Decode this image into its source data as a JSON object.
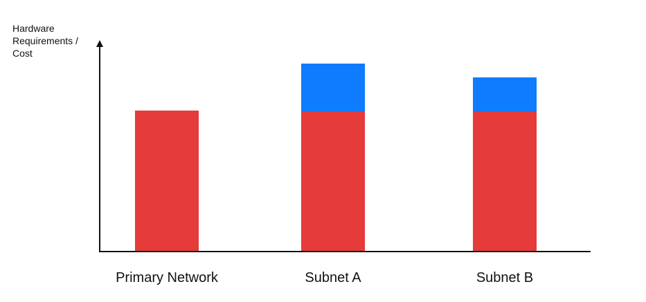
{
  "chart_data": {
    "type": "stacked-bar",
    "y_label": "Hardware Requirements / Cost",
    "categories": [
      "Primary Network",
      "Subnet A",
      "Subnet B"
    ],
    "series": [
      {
        "color": "#e53b3b",
        "values": [
          204,
          203,
          203
        ]
      },
      {
        "color": "#0f7bff",
        "values": [
          0,
          69,
          49
        ]
      }
    ],
    "ylim": [
      0,
      306
    ]
  }
}
